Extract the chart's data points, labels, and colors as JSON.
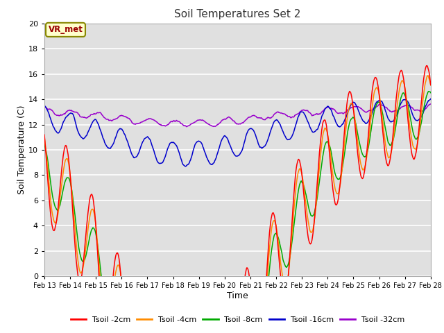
{
  "title": "Soil Temperatures Set 2",
  "xlabel": "Time",
  "ylabel": "Soil Temperature (C)",
  "ylim": [
    0,
    20
  ],
  "yticks": [
    0,
    2,
    4,
    6,
    8,
    10,
    12,
    14,
    16,
    18,
    20
  ],
  "x_labels": [
    "Feb 13",
    "Feb 14",
    "Feb 15",
    "Feb 16",
    "Feb 17",
    "Feb 18",
    "Feb 19",
    "Feb 20",
    "Feb 21",
    "Feb 22",
    "Feb 23",
    "Feb 24",
    "Feb 25",
    "Feb 26",
    "Feb 27",
    "Feb 28"
  ],
  "annotation_text": "VR_met",
  "series_colors": [
    "#ff0000",
    "#ff8c00",
    "#00aa00",
    "#0000cc",
    "#9900cc"
  ],
  "series_labels": [
    "Tsoil -2cm",
    "Tsoil -4cm",
    "Tsoil -8cm",
    "Tsoil -16cm",
    "Tsoil -32cm"
  ],
  "bg_color": "#e0e0e0",
  "grid_color": "white",
  "title_color": "#333333",
  "base_temps": [
    13.2,
    13.1,
    13.0,
    13.2,
    13.3
  ],
  "amplitudes": [
    3.5,
    2.8,
    1.8,
    0.85,
    0.4
  ],
  "phases": [
    0.0,
    0.25,
    0.6,
    0.9,
    1.4
  ]
}
